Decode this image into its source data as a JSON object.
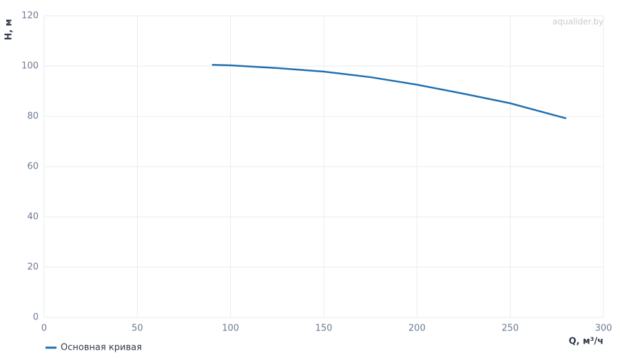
{
  "chart_data": {
    "type": "line",
    "watermark": "aqualider.by",
    "x_label": "Q, м³/ч",
    "y_label": "H, м",
    "x": [
      90,
      100,
      125,
      150,
      175,
      200,
      225,
      250,
      280
    ],
    "series": [
      {
        "name": "Основная кривая",
        "color": "#1f6fb0",
        "values": [
          100.5,
          100.3,
          99.2,
          97.8,
          95.6,
          92.6,
          89.0,
          85.2,
          79.2
        ]
      }
    ],
    "xlim": [
      0,
      300
    ],
    "xticks": [
      0,
      50,
      100,
      150,
      200,
      250,
      300
    ],
    "ylim": [
      0,
      120
    ],
    "yticks": [
      0,
      20,
      40,
      60,
      80,
      100,
      120
    ],
    "grid": true,
    "legend": "bottom-left"
  }
}
